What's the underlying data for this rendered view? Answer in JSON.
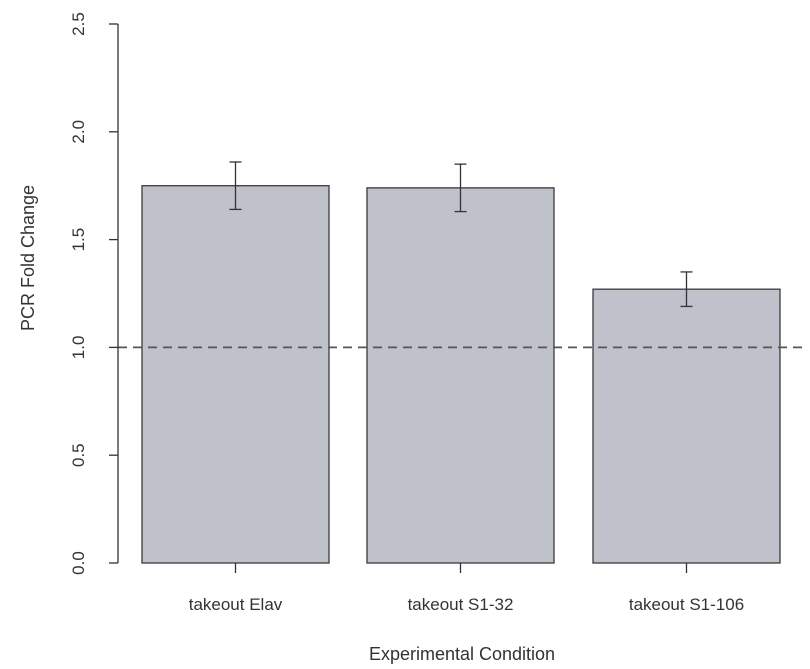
{
  "chart_data": {
    "type": "bar",
    "title": "",
    "xlabel": "Experimental Condition",
    "ylabel": "PCR Fold Change",
    "categories": [
      "takeout Elav",
      "takeout S1-32",
      "takeout S1-106"
    ],
    "values": [
      1.75,
      1.74,
      1.27
    ],
    "error_bars": [
      {
        "low": 1.64,
        "high": 1.86
      },
      {
        "low": 1.63,
        "high": 1.85
      },
      {
        "low": 1.19,
        "high": 1.35
      }
    ],
    "ylim": [
      0,
      2.5
    ],
    "yticks": [
      "0.0",
      "0.5",
      "1.0",
      "1.5",
      "2.0",
      "2.5"
    ],
    "reference_line": 1.0,
    "grid": false,
    "legend": "none",
    "colors": {
      "bar_fill": "#bfc2cb",
      "bar_stroke": "#3a3a3a",
      "axis": "#333333",
      "reference_line": "#555555"
    }
  }
}
